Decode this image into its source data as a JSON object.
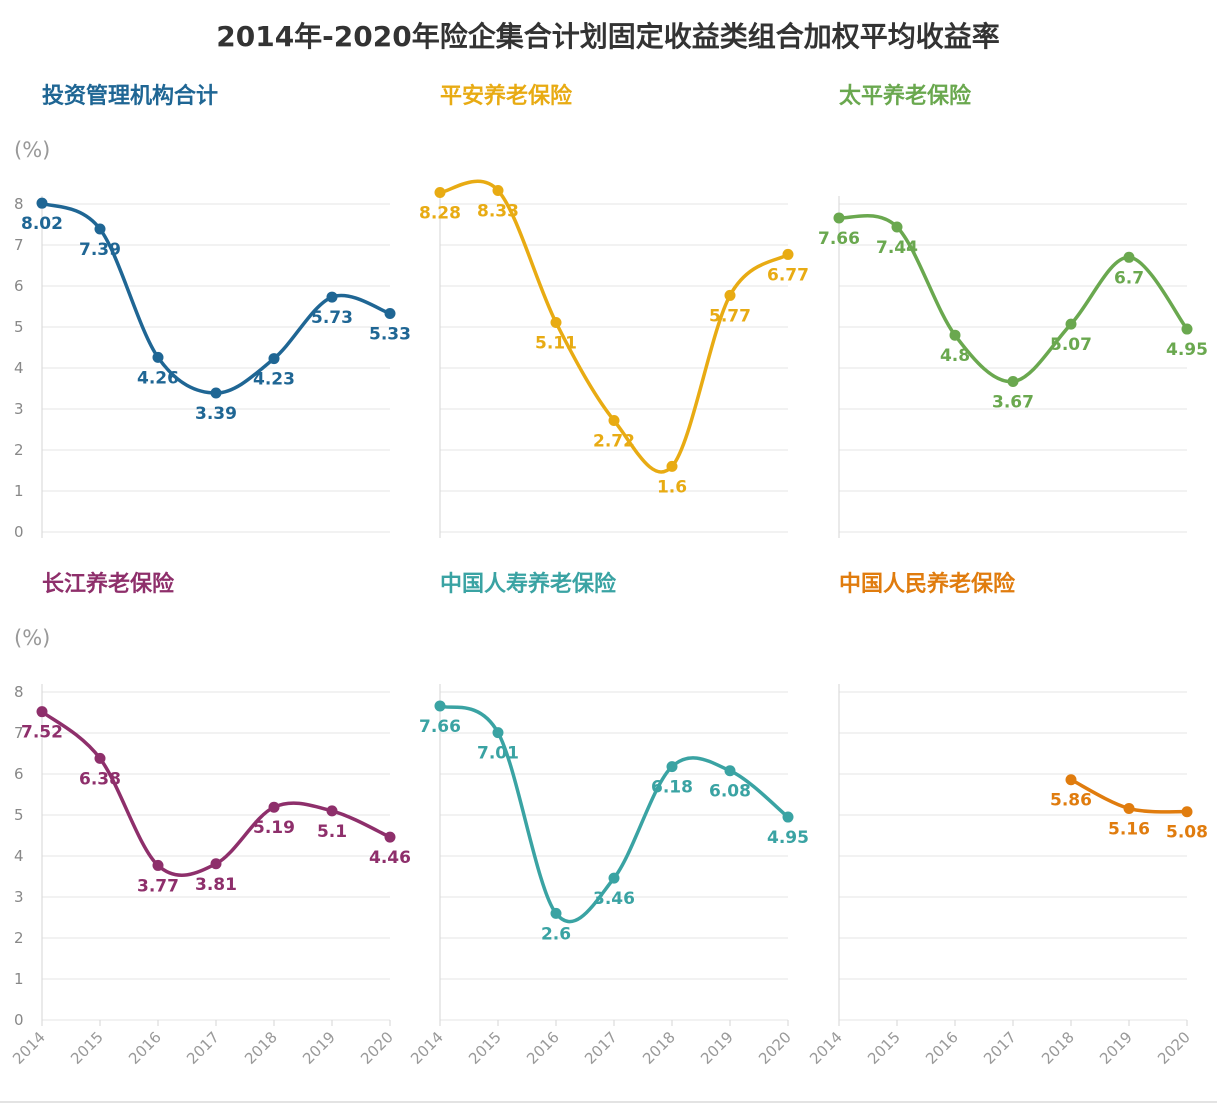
{
  "title": "2014年-2020年险企集合计划固定收益类组合加权平均收益率",
  "unit": "(%)",
  "chart_data": {
    "type": "line",
    "layout": "small-multiples-3x2",
    "x": [
      "2014",
      "2015",
      "2016",
      "2017",
      "2018",
      "2019",
      "2020"
    ],
    "ylim": [
      0,
      8
    ],
    "yticks": [
      "0",
      "1",
      "2",
      "3",
      "4",
      "5",
      "6",
      "7",
      "8"
    ],
    "grid": true,
    "legend": "none",
    "series": [
      {
        "name": "投资管理机构合计",
        "color": "#1f6694",
        "values": [
          8.02,
          7.39,
          4.26,
          3.39,
          4.23,
          5.73,
          5.33
        ],
        "labels": [
          "8.02",
          "7.39",
          "4.26",
          "3.39",
          "4.23",
          "5.73",
          "5.33"
        ]
      },
      {
        "name": "平安养老保险",
        "color": "#e8ab13",
        "values": [
          8.28,
          8.33,
          5.11,
          2.72,
          1.6,
          5.77,
          6.77
        ],
        "labels": [
          "8.28",
          "8.33",
          "5.11",
          "2.72",
          "1.6",
          "5.77",
          "6.77"
        ]
      },
      {
        "name": "太平养老保险",
        "color": "#6aa84f",
        "values": [
          7.66,
          7.44,
          4.8,
          3.67,
          5.07,
          6.7,
          4.95
        ],
        "labels": [
          "7.66",
          "7.44",
          "4.8",
          "3.67",
          "5.07",
          "6.7",
          "4.95"
        ]
      },
      {
        "name": "长江养老保险",
        "color": "#8e2f6b",
        "values": [
          7.52,
          6.38,
          3.77,
          3.81,
          5.19,
          5.1,
          4.46
        ],
        "labels": [
          "7.52",
          "6.38",
          "3.77",
          "3.81",
          "5.19",
          "5.1",
          "4.46"
        ]
      },
      {
        "name": "中国人寿养老保险",
        "color": "#3aa3a3",
        "values": [
          7.66,
          7.01,
          2.6,
          3.46,
          6.18,
          6.08,
          4.95
        ],
        "labels": [
          "7.66",
          "7.01",
          "2.6",
          "3.46",
          "6.18",
          "6.08",
          "4.95"
        ]
      },
      {
        "name": "中国人民养老保险",
        "color": "#e07c0e",
        "values": [
          null,
          null,
          null,
          null,
          5.86,
          5.16,
          5.08
        ],
        "labels": [
          null,
          null,
          null,
          null,
          "5.86",
          "5.16",
          "5.08"
        ]
      }
    ]
  }
}
